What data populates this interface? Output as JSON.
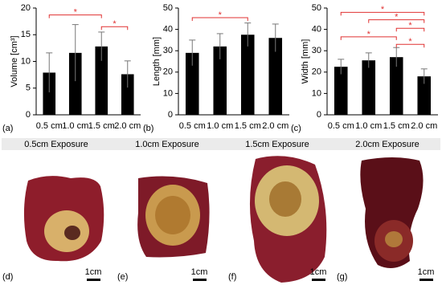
{
  "chart_data": [
    {
      "type": "bar",
      "y_label": "Volume [cm³]",
      "panel": "(a)",
      "color": "#000000",
      "categories": [
        "0.5 cm",
        "1.0 cm",
        "1.5 cm",
        "2.0 cm"
      ],
      "values": [
        7.9,
        11.6,
        12.8,
        7.6
      ],
      "errors": [
        3.7,
        5.3,
        2.7,
        2.5
      ],
      "ylim": [
        0,
        20
      ],
      "yticks": [
        0,
        5,
        10,
        15,
        20
      ],
      "significance": [
        {
          "between": [
            0,
            2
          ],
          "y": 18.7,
          "label": "*"
        },
        {
          "between": [
            2,
            3
          ],
          "y": 16.5,
          "label": "*"
        }
      ]
    },
    {
      "type": "bar",
      "y_label": "Length [mm]",
      "panel": "(b)",
      "color": "#000000",
      "categories": [
        "0.5 cm",
        "1.0 cm",
        "1.5 cm",
        "2.0 cm"
      ],
      "values": [
        29,
        32,
        37.5,
        36
      ],
      "errors": [
        6,
        6,
        5.5,
        6.5
      ],
      "ylim": [
        0,
        50
      ],
      "yticks": [
        0,
        10,
        20,
        30,
        40,
        50
      ],
      "significance": [
        {
          "between": [
            0,
            2
          ],
          "y": 45.5,
          "label": "*"
        }
      ]
    },
    {
      "type": "bar",
      "y_label": "Width [mm]",
      "panel": "(c)",
      "color": "#000000",
      "categories": [
        "0.5 cm",
        "1.0 cm",
        "1.5 cm",
        "2.0 cm"
      ],
      "values": [
        22.5,
        25.5,
        27,
        18
      ],
      "errors": [
        3.5,
        3.5,
        4.5,
        3.5
      ],
      "ylim": [
        0,
        50
      ],
      "yticks": [
        0,
        10,
        20,
        30,
        40,
        50
      ],
      "significance": [
        {
          "between": [
            0,
            3
          ],
          "y": 48,
          "label": "*"
        },
        {
          "between": [
            1,
            3
          ],
          "y": 44.5,
          "label": "*"
        },
        {
          "between": [
            2,
            3
          ],
          "y": 40.5,
          "label": "*"
        },
        {
          "between": [
            0,
            2
          ],
          "y": 36.5,
          "label": "*"
        },
        {
          "between": [
            2,
            3
          ],
          "y": 33,
          "label": "*"
        }
      ]
    }
  ],
  "photos": [
    {
      "title": "0.5cm Exposure",
      "panel": "(d)",
      "scale": "1cm"
    },
    {
      "title": "1.0cm Exposure",
      "panel": "(e)",
      "scale": "1cm"
    },
    {
      "title": "1.5cm Exposure",
      "panel": "(f)",
      "scale": "1cm"
    },
    {
      "title": "2.0cm Exposure",
      "panel": "(g)",
      "scale": "1cm"
    }
  ]
}
